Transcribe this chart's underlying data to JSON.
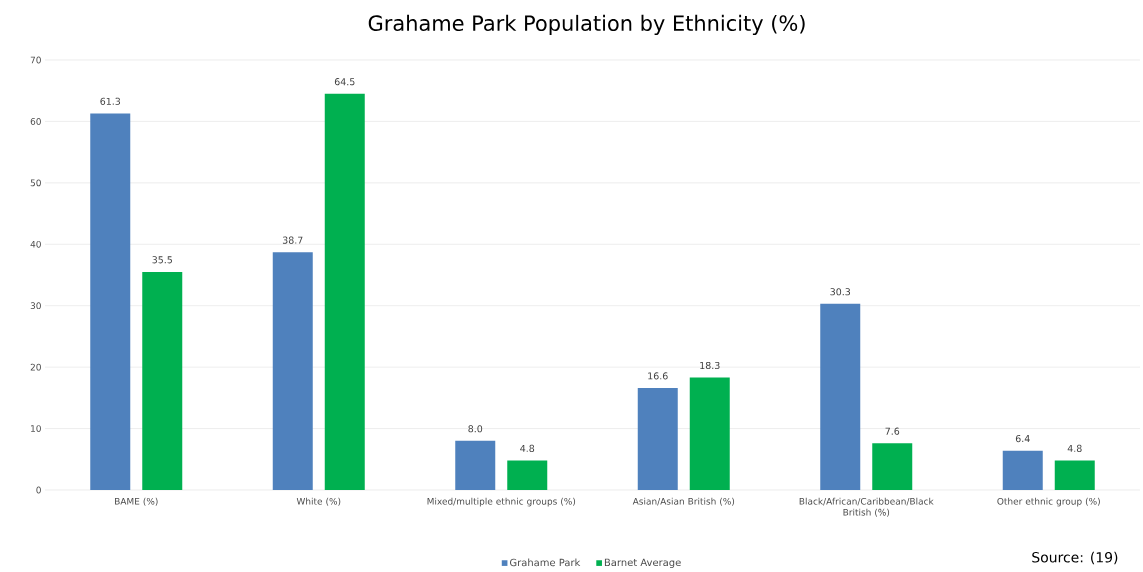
{
  "chart_data": {
    "type": "bar",
    "title": "Grahame Park Population by Ethnicity (%)",
    "categories": [
      "BAME (%)",
      "White (%)",
      "Mixed/multiple ethnic groups (%)",
      "Asian/Asian British (%)",
      "Black/African/Caribbean/Black British (%)",
      "Other ethnic group (%)"
    ],
    "series": [
      {
        "name": "Grahame Park",
        "color": "#4f81bd",
        "values": [
          61.3,
          38.7,
          8.0,
          16.6,
          30.3,
          6.4
        ],
        "value_labels": [
          "61.3",
          "38.7",
          "8.0",
          "16.6",
          "30.3",
          "6.4"
        ]
      },
      {
        "name": "Barnet Average",
        "color": "#00b050",
        "values": [
          35.5,
          64.5,
          4.8,
          18.3,
          7.6,
          4.8
        ],
        "value_labels": [
          "35.5",
          "64.5",
          "4.8",
          "18.3",
          "7.6",
          "4.8"
        ]
      }
    ],
    "ylim": [
      0,
      70
    ],
    "yticks": [
      0,
      10,
      20,
      30,
      40,
      50,
      60,
      70
    ],
    "grid": "y",
    "legend": "bottom",
    "annotations": [
      "Source: (19)"
    ]
  }
}
